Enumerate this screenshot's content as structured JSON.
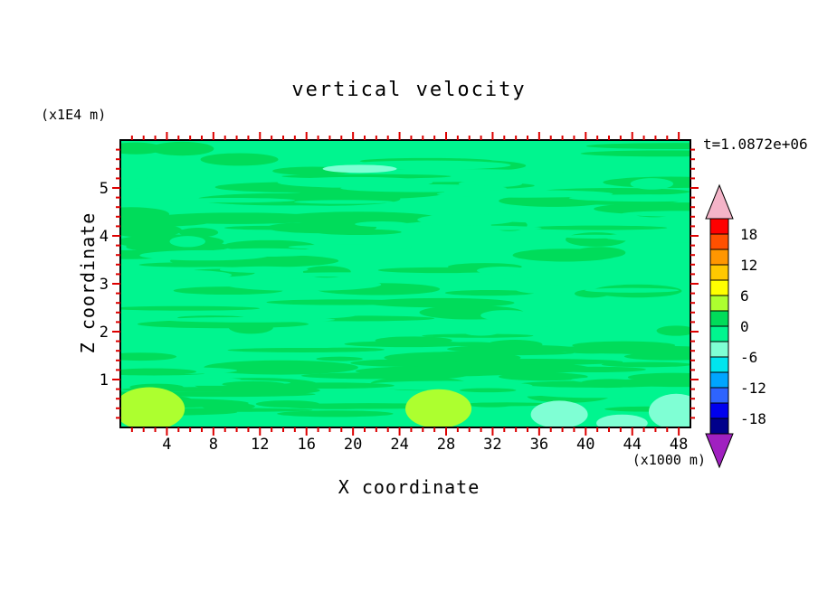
{
  "chart_data": {
    "type": "heatmap",
    "title": "vertical velocity",
    "time": "t=1.0872e+06",
    "xlabel": "X coordinate",
    "ylabel": "Z coordinate",
    "x_unit": "(x1000 m)",
    "y_unit": "(x1E4 m)",
    "xlim": [
      0,
      49
    ],
    "ylim": [
      0,
      6
    ],
    "x_ticks_major": [
      4,
      8,
      12,
      16,
      20,
      24,
      28,
      32,
      36,
      40,
      44,
      48
    ],
    "x_tick_minor_step": 1,
    "y_ticks_major": [
      1,
      2,
      3,
      4,
      5
    ],
    "y_tick_minor_step": 0.2,
    "grid": false,
    "tick_color": "#DD0000",
    "frame_color": "#000000",
    "legend_position": "right",
    "colorbar": {
      "labels": [
        18,
        12,
        6,
        0,
        -6,
        -12,
        -18
      ],
      "level_min": -21,
      "level_max": 21,
      "level_step": 3,
      "segment_colors_bottom_to_top": [
        "#00008B",
        "#0000EE",
        "#2E64FE",
        "#00A5FF",
        "#00E5EE",
        "#7FFFD4",
        "#00F58F",
        "#00DC5A",
        "#ADFF2F",
        "#FFFF00",
        "#FFC800",
        "#FF9600",
        "#FF5000",
        "#FF0000"
      ],
      "under_color": "#A020C0",
      "over_color": "#F4B4C8"
    },
    "field": {
      "note": "values mostly in -3..3 band; horizontal streak structure; yellow-green maxima near bottom at x~2.5 and x~27.5; aquamarine minima near bottom at x~38 and x~48",
      "base_color": "#00F58F",
      "streak_color": "#00DC5A",
      "streak_count": 90,
      "seed": 7,
      "blobs": [
        {
          "x": 0.051,
          "y": 0.935,
          "rx": 0.062,
          "ry": 0.075,
          "color": "#ADFF2F"
        },
        {
          "x": 0.558,
          "y": 0.935,
          "rx": 0.058,
          "ry": 0.068,
          "color": "#ADFF2F"
        },
        {
          "x": 0.77,
          "y": 0.955,
          "rx": 0.05,
          "ry": 0.048,
          "color": "#7FFFD4"
        },
        {
          "x": 0.975,
          "y": 0.945,
          "rx": 0.048,
          "ry": 0.062,
          "color": "#7FFFD4"
        },
        {
          "x": 0.88,
          "y": 0.985,
          "rx": 0.045,
          "ry": 0.03,
          "color": "#7FFFD4"
        },
        {
          "x": 0.42,
          "y": 0.1,
          "rx": 0.065,
          "ry": 0.014,
          "color": "#7FFFD4"
        }
      ]
    }
  }
}
